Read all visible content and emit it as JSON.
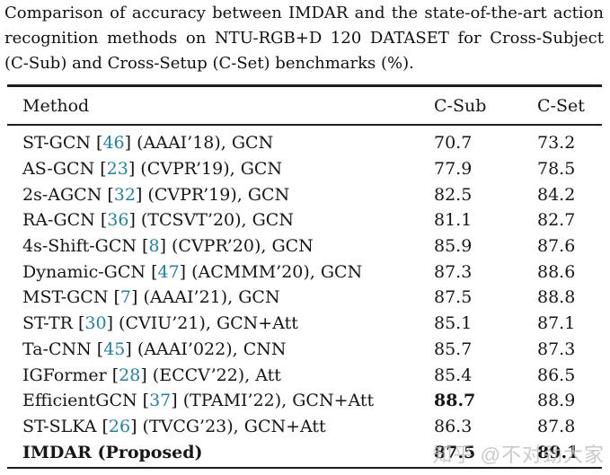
{
  "caption": {
    "lines": [
      "Comparison of accuracy between IMDAR and the state-of-the-art action",
      "recognition methods on NTU-RGB+D 120 DATASET for Cross-Subject",
      "(C-Sub) and Cross-Setup (C-Set) benchmarks (%)."
    ]
  },
  "table": {
    "columns": [
      "Method",
      "C-Sub",
      "C-Set"
    ],
    "rows": [
      {
        "pre": "ST-GCN [",
        "cite": "46",
        "post": "] (AAAI’18), GCN",
        "c_sub": "70.7",
        "c_set": "73.2",
        "bold_method": false,
        "bold_csub": false,
        "bold_cset": false
      },
      {
        "pre": "AS-GCN [",
        "cite": "23",
        "post": "] (CVPR’19), GCN",
        "c_sub": "77.9",
        "c_set": "78.5",
        "bold_method": false,
        "bold_csub": false,
        "bold_cset": false
      },
      {
        "pre": "2s-AGCN [",
        "cite": "32",
        "post": "] (CVPR’19), GCN",
        "c_sub": "82.5",
        "c_set": "84.2",
        "bold_method": false,
        "bold_csub": false,
        "bold_cset": false
      },
      {
        "pre": "RA-GCN [",
        "cite": "36",
        "post": "] (TCSVT’20), GCN",
        "c_sub": "81.1",
        "c_set": "82.7",
        "bold_method": false,
        "bold_csub": false,
        "bold_cset": false
      },
      {
        "pre": "4s-Shift-GCN [",
        "cite": "8",
        "post": "] (CVPR’20), GCN",
        "c_sub": "85.9",
        "c_set": "87.6",
        "bold_method": false,
        "bold_csub": false,
        "bold_cset": false
      },
      {
        "pre": "Dynamic-GCN [",
        "cite": "47",
        "post": "] (ACMMM’20), GCN",
        "c_sub": "87.3",
        "c_set": "88.6",
        "bold_method": false,
        "bold_csub": false,
        "bold_cset": false
      },
      {
        "pre": "MST-GCN [",
        "cite": "7",
        "post": "] (AAAI’21), GCN",
        "c_sub": "87.5",
        "c_set": "88.8",
        "bold_method": false,
        "bold_csub": false,
        "bold_cset": false
      },
      {
        "pre": "ST-TR [",
        "cite": "30",
        "post": "] (CVIU’21), GCN+Att",
        "c_sub": "85.1",
        "c_set": "87.1",
        "bold_method": false,
        "bold_csub": false,
        "bold_cset": false
      },
      {
        "pre": "Ta-CNN [",
        "cite": "45",
        "post": "] (AAAI’022), CNN",
        "c_sub": "85.7",
        "c_set": "87.3",
        "bold_method": false,
        "bold_csub": false,
        "bold_cset": false
      },
      {
        "pre": "IGFormer [",
        "cite": "28",
        "post": "] (ECCV’22), Att",
        "c_sub": "85.4",
        "c_set": "86.5",
        "bold_method": false,
        "bold_csub": false,
        "bold_cset": false
      },
      {
        "pre": "EfficientGCN [",
        "cite": "37",
        "post": "] (TPAMI’22), GCN+Att",
        "c_sub": "88.7",
        "c_set": "88.9",
        "bold_method": false,
        "bold_csub": true,
        "bold_cset": false
      },
      {
        "pre": "ST-SLKA [",
        "cite": "26",
        "post": "] (TVCG’23), GCN+Att",
        "c_sub": "86.3",
        "c_set": "87.8",
        "bold_method": false,
        "bold_csub": false,
        "bold_cset": false
      },
      {
        "pre": "IMDAR (Proposed)",
        "cite": "",
        "post": "",
        "c_sub": "87.5",
        "c_set": "89.1",
        "bold_method": true,
        "bold_csub": true,
        "bold_cset": true
      }
    ]
  },
  "watermark": {
    "text": "知乎 @不对劲大家",
    "color": "#c0c0c0"
  },
  "colors": {
    "citation": "#267f9d",
    "text": "#161616",
    "rule": "#1d1d1d",
    "background": "#ffffff"
  }
}
